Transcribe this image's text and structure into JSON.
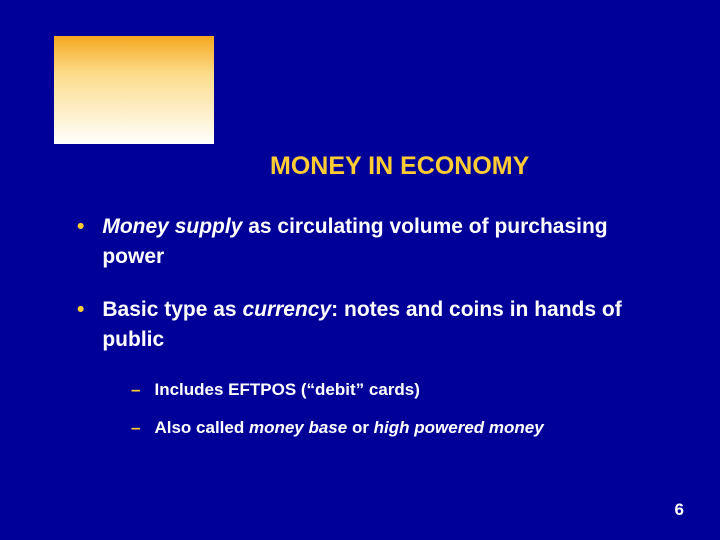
{
  "colors": {
    "background": "#000099",
    "accent": "#ffcc33",
    "text": "#ffffff",
    "gradient_top": "#f5a720",
    "gradient_mid": "#fcdc8a",
    "gradient_bottom": "#ffffff"
  },
  "title": "MONEY IN ECONOMY",
  "bullets": [
    {
      "pre": "",
      "italic1": "Money supply",
      "mid": " as circulating volume of purchasing power",
      "italic2": "",
      "post": ""
    },
    {
      "pre": "Basic type as ",
      "italic1": "currency",
      "mid": ": notes and coins in hands of public",
      "italic2": "",
      "post": ""
    }
  ],
  "sub_bullets": [
    {
      "pre": "Includes EFTPOS (“debit” cards)",
      "italic1": "",
      "mid": "",
      "italic2": "",
      "post": ""
    },
    {
      "pre": "Also called ",
      "italic1": "money base",
      "mid": " or ",
      "italic2": "high powered money",
      "post": ""
    }
  ],
  "page_number": "6"
}
